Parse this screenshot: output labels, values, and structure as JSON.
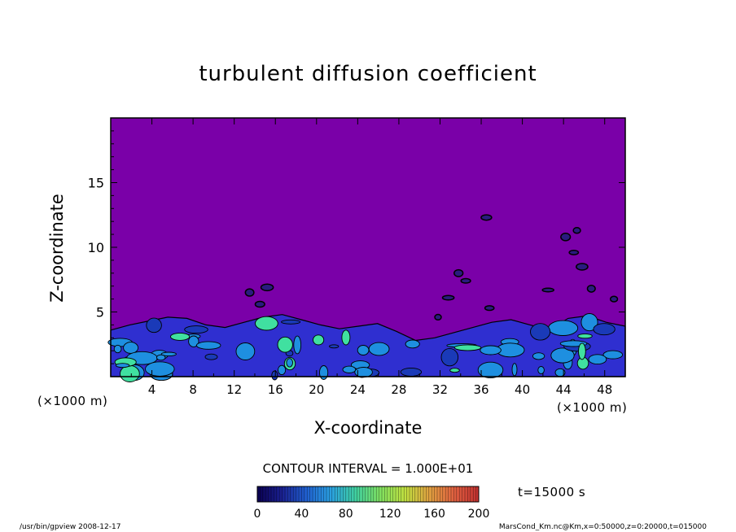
{
  "chart_data": {
    "type": "heatmap",
    "title": "turbulent diffusion coefficient",
    "xlabel": "X-coordinate",
    "ylabel": "Z-coordinate",
    "x_unit": "(×1000 m)",
    "y_unit": "(×1000 m)",
    "xlim": [
      0,
      50
    ],
    "ylim": [
      0,
      20
    ],
    "x_ticks": [
      4,
      8,
      12,
      16,
      20,
      24,
      28,
      32,
      36,
      40,
      44,
      48
    ],
    "y_ticks": [
      5,
      10,
      15
    ],
    "background_value": 0,
    "turbulent_layer_top_z": [
      3.6,
      4.0,
      4.3,
      4.6,
      4.5,
      4.0,
      3.8,
      4.2,
      4.6,
      4.8,
      4.4,
      4.0,
      3.7,
      3.9,
      4.1,
      3.5,
      2.8,
      3.0,
      3.4,
      3.8,
      4.2,
      4.4,
      4.0,
      3.6,
      4.5,
      4.7,
      4.2,
      3.9
    ],
    "contour_interval": "CONTOUR INTERVAL = 1.000E+01",
    "colorbar": {
      "min": 0,
      "max": 200,
      "ticks": [
        0,
        40,
        80,
        120,
        160,
        200
      ],
      "colors": [
        "#0a0050",
        "#1a2090",
        "#2060d0",
        "#2aa0e0",
        "#40d0a0",
        "#80e060",
        "#c0e040",
        "#e0a040",
        "#e06040",
        "#c03030"
      ]
    },
    "time_label": "t=15000 s"
  },
  "footer": {
    "left": "/usr/bin/gpview   2008-12-17",
    "right": "MarsCond_Km.nc@Km,x=0:50000,z=0:20000,t=015000"
  },
  "colors": {
    "background_field": "#7a00a8",
    "low_values": "#2f2fd0",
    "mid_values": "#1e8fe0",
    "high_values": "#40e0a0"
  }
}
